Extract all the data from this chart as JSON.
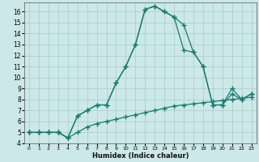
{
  "xlabel": "Humidex (Indice chaleur)",
  "bg_color": "#cce8e8",
  "grid_color": "#a8cccc",
  "line_color": "#1a7a6e",
  "xlim": [
    -0.5,
    23.5
  ],
  "ylim": [
    4,
    16.8
  ],
  "xticks": [
    0,
    1,
    2,
    3,
    4,
    5,
    6,
    7,
    8,
    9,
    10,
    11,
    12,
    13,
    14,
    15,
    16,
    17,
    18,
    19,
    20,
    21,
    22,
    23
  ],
  "yticks": [
    4,
    5,
    6,
    7,
    8,
    9,
    10,
    11,
    12,
    13,
    14,
    15,
    16
  ],
  "line1_x": [
    0,
    1,
    2,
    3,
    4,
    5,
    6,
    7,
    8,
    9,
    10,
    11,
    12,
    13,
    14,
    15,
    16,
    17,
    18,
    19,
    20,
    21,
    22,
    23
  ],
  "line1_y": [
    5.0,
    5.0,
    5.0,
    5.0,
    4.5,
    5.0,
    5.5,
    5.8,
    6.0,
    6.2,
    6.4,
    6.6,
    6.8,
    7.0,
    7.2,
    7.4,
    7.5,
    7.6,
    7.7,
    7.8,
    7.9,
    8.0,
    8.1,
    8.2
  ],
  "line2_x": [
    0,
    1,
    2,
    3,
    4,
    5,
    6,
    7,
    8,
    9,
    10,
    11,
    12,
    13,
    14,
    15,
    16,
    17,
    18,
    19,
    20,
    21,
    22,
    23
  ],
  "line2_y": [
    5.0,
    5.0,
    5.0,
    5.0,
    4.5,
    6.5,
    7.0,
    7.5,
    7.5,
    9.5,
    11.0,
    13.0,
    16.2,
    16.5,
    16.0,
    15.5,
    14.8,
    12.3,
    11.0,
    7.5,
    7.5,
    9.0,
    8.0,
    8.5
  ],
  "line3_x": [
    0,
    1,
    2,
    3,
    4,
    5,
    6,
    7,
    8,
    9,
    10,
    11,
    12,
    13,
    14,
    15,
    16,
    17,
    18,
    19,
    20,
    21,
    22,
    23
  ],
  "line3_y": [
    5.0,
    5.0,
    5.0,
    5.0,
    4.5,
    6.5,
    7.0,
    7.5,
    7.5,
    9.5,
    11.0,
    13.0,
    16.2,
    16.5,
    16.0,
    15.5,
    12.5,
    12.3,
    11.0,
    7.5,
    7.5,
    8.5,
    8.0,
    8.5
  ]
}
